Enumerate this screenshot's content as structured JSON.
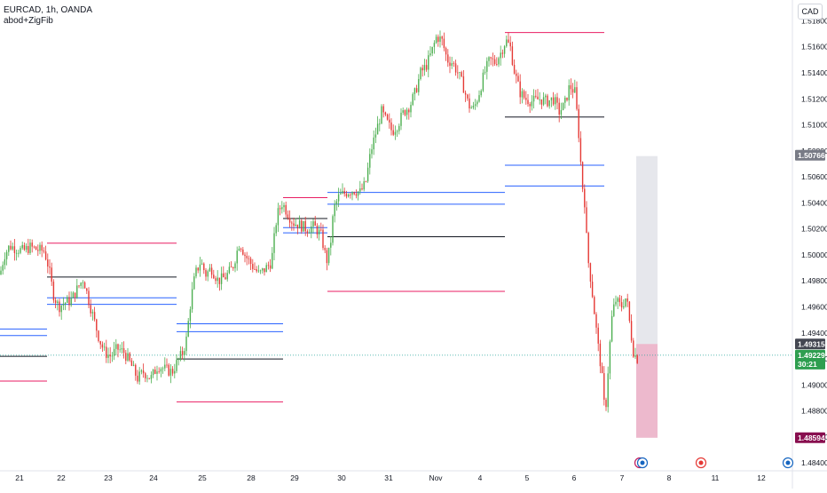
{
  "header": {
    "symbol_line": "EURCAD, 1h, OANDA",
    "indicator_line": "abod+ZigFib"
  },
  "currency_button": "CAD",
  "colors": {
    "bull": "#26a69a",
    "bear": "#ef5350",
    "candle_up": "#4caf50",
    "candle_down": "#e53935",
    "fib_red": "#e91e63",
    "fib_blue": "#2962ff",
    "fib_black": "#131722",
    "current_green": "#2e9e4f",
    "grey_tag": "#787b86",
    "maroon_tag": "#880e4f",
    "dark_tag": "#434651"
  },
  "chart_data": {
    "type": "candlestick",
    "symbol": "EURCAD",
    "timeframe": "1h",
    "source": "OANDA",
    "y_ticks": [
      "1.51800",
      "1.51600",
      "1.51400",
      "1.51200",
      "1.51000",
      "1.50800",
      "1.50600",
      "1.50400",
      "1.50200",
      "1.50000",
      "1.49800",
      "1.49600",
      "1.49400",
      "1.49200",
      "1.49000",
      "1.48800",
      "1.48600",
      "1.48400"
    ],
    "ylim": [
      1.4834,
      1.5196
    ],
    "x_ticks": [
      "21",
      "22",
      "23",
      "24",
      "25",
      "28",
      "29",
      "30",
      "31",
      "Nov",
      "4",
      "5",
      "6",
      "7",
      "8",
      "11",
      "12"
    ],
    "price_tags": [
      {
        "label": "1.50766",
        "value": 1.50766,
        "style": "grey"
      },
      {
        "label": "1.49315",
        "value": 1.49315,
        "style": "dark"
      },
      {
        "label": "1.49229",
        "value": 1.49229,
        "style": "current"
      },
      {
        "label": "30:21",
        "style": "countdown"
      },
      {
        "label": "1.48594",
        "value": 1.48594,
        "style": "maroon"
      }
    ],
    "close_path": [
      [
        0,
        1.4985
      ],
      [
        5,
        1.5
      ],
      [
        11,
        1.5007
      ],
      [
        18,
        1.5005
      ],
      [
        26,
        1.5003
      ],
      [
        34,
        1.5006
      ],
      [
        42,
        1.5004
      ],
      [
        50,
        1.5003
      ],
      [
        55,
        1.499
      ],
      [
        60,
        1.497
      ],
      [
        66,
        1.496
      ],
      [
        72,
        1.4963
      ],
      [
        80,
        1.4965
      ],
      [
        88,
        1.4975
      ],
      [
        94,
        1.4982
      ],
      [
        100,
        1.4965
      ],
      [
        106,
        1.495
      ],
      [
        112,
        1.4935
      ],
      [
        118,
        1.4925
      ],
      [
        125,
        1.4922
      ],
      [
        132,
        1.4928
      ],
      [
        140,
        1.4925
      ],
      [
        148,
        1.4915
      ],
      [
        155,
        1.4905
      ],
      [
        162,
        1.491
      ],
      [
        170,
        1.4905
      ],
      [
        178,
        1.4915
      ],
      [
        186,
        1.4912
      ],
      [
        194,
        1.491
      ],
      [
        200,
        1.4918
      ],
      [
        206,
        1.4925
      ],
      [
        210,
        1.4935
      ],
      [
        215,
        1.4965
      ],
      [
        220,
        1.4985
      ],
      [
        226,
        1.4995
      ],
      [
        232,
        1.4985
      ],
      [
        238,
        1.499
      ],
      [
        246,
        1.498
      ],
      [
        254,
        1.4983
      ],
      [
        262,
        1.499
      ],
      [
        270,
        1.501
      ],
      [
        276,
        1.5
      ],
      [
        284,
        1.4992
      ],
      [
        292,
        1.4985
      ],
      [
        300,
        1.499
      ],
      [
        306,
        1.4995
      ],
      [
        312,
        1.503
      ],
      [
        318,
        1.504
      ],
      [
        322,
        1.5035
      ],
      [
        330,
        1.5025
      ],
      [
        338,
        1.5023
      ],
      [
        346,
        1.502
      ],
      [
        354,
        1.5022
      ],
      [
        362,
        1.5015
      ],
      [
        368,
        1.4995
      ],
      [
        372,
        1.5005
      ],
      [
        376,
        1.5035
      ],
      [
        382,
        1.5045
      ],
      [
        390,
        1.5048
      ],
      [
        398,
        1.505
      ],
      [
        406,
        1.5048
      ],
      [
        412,
        1.5055
      ],
      [
        418,
        1.508
      ],
      [
        424,
        1.5095
      ],
      [
        430,
        1.511
      ],
      [
        436,
        1.5102
      ],
      [
        442,
        1.5095
      ],
      [
        448,
        1.51
      ],
      [
        455,
        1.511
      ],
      [
        462,
        1.5115
      ],
      [
        468,
        1.5125
      ],
      [
        474,
        1.514
      ],
      [
        480,
        1.5145
      ],
      [
        486,
        1.5155
      ],
      [
        492,
        1.5168
      ],
      [
        498,
        1.5165
      ],
      [
        504,
        1.515
      ],
      [
        510,
        1.5148
      ],
      [
        516,
        1.514
      ],
      [
        522,
        1.513
      ],
      [
        528,
        1.5115
      ],
      [
        534,
        1.5112
      ],
      [
        540,
        1.5125
      ],
      [
        546,
        1.514
      ],
      [
        552,
        1.515
      ],
      [
        558,
        1.5148
      ],
      [
        564,
        1.5155
      ],
      [
        570,
        1.5165
      ],
      [
        575,
        1.516
      ],
      [
        580,
        1.514
      ],
      [
        586,
        1.5125
      ],
      [
        592,
        1.512
      ],
      [
        600,
        1.5118
      ],
      [
        608,
        1.512
      ],
      [
        616,
        1.5118
      ],
      [
        624,
        1.512
      ],
      [
        630,
        1.511
      ],
      [
        636,
        1.5115
      ],
      [
        642,
        1.513
      ],
      [
        648,
        1.5125
      ],
      [
        652,
        1.5095
      ],
      [
        656,
        1.5055
      ],
      [
        659,
        1.504
      ],
      [
        662,
        1.5
      ],
      [
        666,
        1.498
      ],
      [
        670,
        1.4955
      ],
      [
        674,
        1.493
      ],
      [
        678,
        1.491
      ],
      [
        682,
        1.4875
      ],
      [
        686,
        1.492
      ],
      [
        690,
        1.4955
      ],
      [
        694,
        1.4965
      ],
      [
        700,
        1.496
      ],
      [
        706,
        1.4968
      ],
      [
        710,
        1.4945
      ],
      [
        714,
        1.4925
      ],
      [
        718,
        1.492
      ],
      [
        720,
        1.4923
      ]
    ],
    "level_lines": [
      {
        "x1": 0,
        "x2": 53,
        "value": 1.4938,
        "color": "blue"
      },
      {
        "x1": 0,
        "x2": 53,
        "value": 1.4943,
        "color": "blue"
      },
      {
        "x1": 0,
        "x2": 53,
        "value": 1.4922,
        "color": "black"
      },
      {
        "x1": 0,
        "x2": 53,
        "value": 1.4903,
        "color": "red"
      },
      {
        "x1": 53,
        "x2": 199,
        "value": 1.5009,
        "color": "red"
      },
      {
        "x1": 53,
        "x2": 199,
        "value": 1.4983,
        "color": "black"
      },
      {
        "x1": 53,
        "x2": 199,
        "value": 1.4967,
        "color": "blue"
      },
      {
        "x1": 53,
        "x2": 199,
        "value": 1.4962,
        "color": "blue"
      },
      {
        "x1": 199,
        "x2": 319,
        "value": 1.4947,
        "color": "blue"
      },
      {
        "x1": 199,
        "x2": 319,
        "value": 1.4941,
        "color": "blue"
      },
      {
        "x1": 199,
        "x2": 319,
        "value": 1.492,
        "color": "black"
      },
      {
        "x1": 199,
        "x2": 319,
        "value": 1.4887,
        "color": "red"
      },
      {
        "x1": 319,
        "x2": 369,
        "value": 1.5044,
        "color": "red"
      },
      {
        "x1": 319,
        "x2": 369,
        "value": 1.5028,
        "color": "black"
      },
      {
        "x1": 319,
        "x2": 369,
        "value": 1.5021,
        "color": "blue"
      },
      {
        "x1": 319,
        "x2": 369,
        "value": 1.5017,
        "color": "blue"
      },
      {
        "x1": 369,
        "x2": 569,
        "value": 1.5048,
        "color": "blue"
      },
      {
        "x1": 369,
        "x2": 569,
        "value": 1.5039,
        "color": "blue"
      },
      {
        "x1": 369,
        "x2": 569,
        "value": 1.5014,
        "color": "black"
      },
      {
        "x1": 369,
        "x2": 569,
        "value": 1.4972,
        "color": "red"
      },
      {
        "x1": 569,
        "x2": 681,
        "value": 1.5171,
        "color": "red"
      },
      {
        "x1": 569,
        "x2": 681,
        "value": 1.5106,
        "color": "black"
      },
      {
        "x1": 569,
        "x2": 681,
        "value": 1.5069,
        "color": "blue"
      },
      {
        "x1": 569,
        "x2": 681,
        "value": 1.5053,
        "color": "blue"
      }
    ],
    "position_box": {
      "x1": 717,
      "x2": 741,
      "target_top": 1.5076,
      "entry": 1.49315,
      "stop": 1.48594
    }
  }
}
